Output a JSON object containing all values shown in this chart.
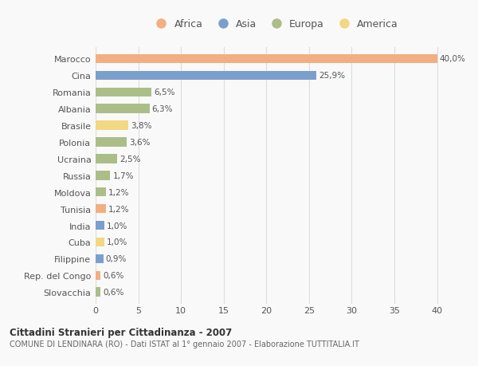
{
  "countries": [
    "Marocco",
    "Cina",
    "Romania",
    "Albania",
    "Brasile",
    "Polonia",
    "Ucraina",
    "Russia",
    "Moldova",
    "Tunisia",
    "India",
    "Cuba",
    "Filippine",
    "Rep. del Congo",
    "Slovacchia"
  ],
  "values": [
    40.0,
    25.9,
    6.5,
    6.3,
    3.8,
    3.6,
    2.5,
    1.7,
    1.2,
    1.2,
    1.0,
    1.0,
    0.9,
    0.6,
    0.6
  ],
  "labels": [
    "40,0%",
    "25,9%",
    "6,5%",
    "6,3%",
    "3,8%",
    "3,6%",
    "2,5%",
    "1,7%",
    "1,2%",
    "1,2%",
    "1,0%",
    "1,0%",
    "0,9%",
    "0,6%",
    "0,6%"
  ],
  "continents": [
    "Africa",
    "Asia",
    "Europa",
    "Europa",
    "America",
    "Europa",
    "Europa",
    "Europa",
    "Europa",
    "Africa",
    "Asia",
    "America",
    "Asia",
    "Africa",
    "Europa"
  ],
  "colors": {
    "Africa": "#F2AF82",
    "Asia": "#7B9FCC",
    "Europa": "#ABBE88",
    "America": "#F2D882"
  },
  "legend_order": [
    "Africa",
    "Asia",
    "Europa",
    "America"
  ],
  "xlim": [
    0,
    42
  ],
  "xticks": [
    0,
    5,
    10,
    15,
    20,
    25,
    30,
    35,
    40
  ],
  "title_bold": "Cittadini Stranieri per Cittadinanza - 2007",
  "subtitle": "COMUNE DI LENDINARA (RO) - Dati ISTAT al 1° gennaio 2007 - Elaborazione TUTTITALIA.IT",
  "background_color": "#f9f9f9",
  "grid_color": "#dddddd",
  "bar_height": 0.55,
  "label_fontsize": 7.5,
  "ytick_fontsize": 8.0,
  "xtick_fontsize": 8.0
}
